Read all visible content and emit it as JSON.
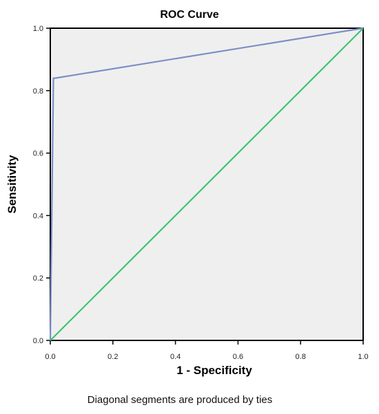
{
  "chart_data": {
    "type": "line",
    "title": "ROC Curve",
    "xlabel": "1 - Specificity",
    "ylabel": "Sensitivity",
    "xlim": [
      0,
      1
    ],
    "ylim": [
      0,
      1
    ],
    "x_ticks": [
      "0.0",
      "0.2",
      "0.4",
      "0.6",
      "0.8",
      "1.0"
    ],
    "y_ticks": [
      "0.0",
      "0.2",
      "0.4",
      "0.6",
      "0.8",
      "1.0"
    ],
    "grid": false,
    "legend": "none",
    "plot_background": "#efefef",
    "series": [
      {
        "color": "#7b8fc6",
        "x": [
          0.0,
          0.0,
          0.01,
          0.015,
          1.0
        ],
        "y": [
          0.0,
          0.0,
          0.84,
          0.84,
          1.0
        ]
      },
      {
        "color": "#3ec46d",
        "x": [
          0.0,
          1.0
        ],
        "y": [
          0.0,
          1.0
        ]
      }
    ],
    "footnote": "Diagonal segments are produced by ties"
  }
}
